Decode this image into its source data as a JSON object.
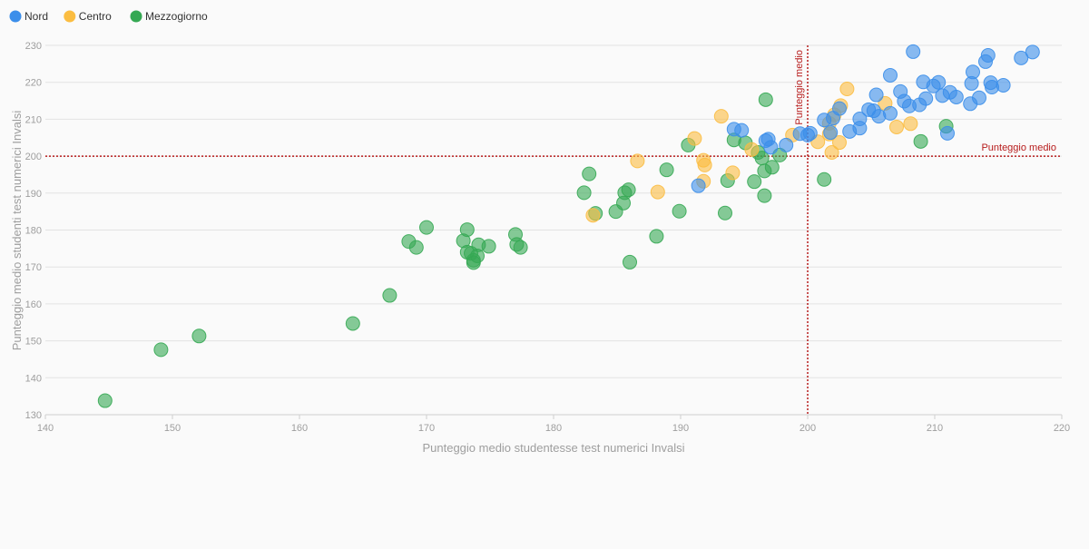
{
  "legend": [
    {
      "name": "Nord",
      "color": "#3b8eea"
    },
    {
      "name": "Centro",
      "color": "#fbbd41"
    },
    {
      "name": "Mezzogiorno",
      "color": "#35a853"
    }
  ],
  "chart_data": {
    "type": "scatter",
    "xlabel": "Punteggio medio studentesse test numerici Invalsi",
    "ylabel": "Punteggio medio studenti test numerici Invalsi",
    "xlim": [
      140,
      220
    ],
    "ylim": [
      130,
      230
    ],
    "x_ticks": [
      140,
      150,
      160,
      170,
      180,
      190,
      200,
      210,
      220
    ],
    "y_ticks": [
      130,
      140,
      150,
      160,
      170,
      180,
      190,
      200,
      210,
      220,
      230
    ],
    "grid": true,
    "legend_position": "top-left",
    "reference_lines": [
      {
        "axis": "x",
        "value": 200,
        "label": "Punteggio medio",
        "color": "#b71c1c"
      },
      {
        "axis": "y",
        "value": 200,
        "label": "Punteggio medio",
        "color": "#b71c1c"
      }
    ],
    "series": [
      {
        "name": "Mezzogiorno",
        "color": "#35a853",
        "points": [
          [
            144.7,
            133.8
          ],
          [
            149.1,
            147.6
          ],
          [
            152.1,
            151.3
          ],
          [
            164.2,
            154.7
          ],
          [
            167.1,
            162.3
          ],
          [
            168.6,
            176.9
          ],
          [
            169.2,
            175.3
          ],
          [
            170.0,
            180.7
          ],
          [
            172.9,
            177.1
          ],
          [
            173.2,
            180.1
          ],
          [
            173.2,
            174.0
          ],
          [
            173.5,
            173.7
          ],
          [
            173.7,
            171.2
          ],
          [
            173.7,
            171.8
          ],
          [
            174.0,
            173.0
          ],
          [
            174.1,
            176.0
          ],
          [
            174.9,
            175.6
          ],
          [
            177.0,
            178.8
          ],
          [
            177.1,
            176.1
          ],
          [
            177.4,
            175.3
          ],
          [
            182.4,
            190.1
          ],
          [
            182.8,
            195.2
          ],
          [
            183.3,
            184.5
          ],
          [
            184.9,
            185.0
          ],
          [
            185.5,
            187.3
          ],
          [
            185.6,
            190.1
          ],
          [
            185.9,
            190.9
          ],
          [
            186.0,
            171.3
          ],
          [
            188.1,
            178.3
          ],
          [
            188.9,
            196.3
          ],
          [
            189.9,
            185.1
          ],
          [
            190.6,
            203.0
          ],
          [
            193.5,
            184.6
          ],
          [
            193.7,
            193.4
          ],
          [
            194.2,
            204.4
          ],
          [
            195.1,
            203.6
          ],
          [
            195.8,
            193.1
          ],
          [
            196.1,
            201.0
          ],
          [
            196.4,
            199.5
          ],
          [
            196.6,
            196.0
          ],
          [
            196.6,
            189.3
          ],
          [
            196.7,
            215.3
          ],
          [
            197.2,
            197.0
          ],
          [
            197.8,
            200.3
          ],
          [
            201.3,
            193.7
          ],
          [
            208.9,
            204.0
          ],
          [
            210.9,
            208.1
          ]
        ]
      },
      {
        "name": "Centro",
        "color": "#fbbd41",
        "points": [
          [
            183.1,
            184.0
          ],
          [
            186.6,
            198.7
          ],
          [
            188.2,
            190.3
          ],
          [
            191.1,
            204.8
          ],
          [
            191.8,
            193.2
          ],
          [
            191.8,
            198.9
          ],
          [
            191.9,
            197.6
          ],
          [
            193.2,
            210.8
          ],
          [
            194.1,
            195.5
          ],
          [
            195.6,
            201.8
          ],
          [
            198.8,
            205.7
          ],
          [
            200.8,
            203.9
          ],
          [
            201.7,
            206.0
          ],
          [
            201.7,
            208.9
          ],
          [
            201.9,
            201.0
          ],
          [
            202.1,
            211.2
          ],
          [
            202.5,
            203.7
          ],
          [
            202.6,
            213.7
          ],
          [
            203.1,
            218.2
          ],
          [
            206.1,
            214.3
          ],
          [
            207.0,
            207.9
          ],
          [
            208.1,
            208.8
          ]
        ]
      },
      {
        "name": "Nord",
        "color": "#3b8eea",
        "points": [
          [
            191.4,
            192.0
          ],
          [
            194.2,
            207.3
          ],
          [
            194.8,
            207.0
          ],
          [
            196.7,
            204.2
          ],
          [
            196.9,
            204.6
          ],
          [
            197.1,
            202.4
          ],
          [
            198.3,
            203.0
          ],
          [
            199.4,
            206.1
          ],
          [
            200.0,
            205.7
          ],
          [
            200.2,
            206.2
          ],
          [
            201.3,
            209.8
          ],
          [
            201.8,
            206.4
          ],
          [
            202.0,
            210.3
          ],
          [
            202.5,
            212.9
          ],
          [
            203.3,
            206.7
          ],
          [
            204.1,
            207.6
          ],
          [
            204.1,
            210.1
          ],
          [
            204.8,
            212.6
          ],
          [
            205.2,
            212.3
          ],
          [
            205.4,
            216.6
          ],
          [
            205.6,
            210.8
          ],
          [
            206.5,
            221.9
          ],
          [
            206.5,
            211.6
          ],
          [
            207.3,
            217.5
          ],
          [
            207.6,
            214.9
          ],
          [
            208.0,
            213.6
          ],
          [
            208.3,
            228.3
          ],
          [
            208.8,
            213.9
          ],
          [
            209.1,
            220.1
          ],
          [
            209.3,
            215.6
          ],
          [
            209.9,
            219.0
          ],
          [
            210.3,
            220.0
          ],
          [
            210.6,
            216.4
          ],
          [
            211.0,
            206.2
          ],
          [
            211.2,
            217.3
          ],
          [
            211.7,
            216.0
          ],
          [
            212.8,
            214.2
          ],
          [
            212.9,
            219.7
          ],
          [
            213.0,
            222.8
          ],
          [
            213.5,
            215.8
          ],
          [
            214.0,
            225.6
          ],
          [
            214.2,
            227.3
          ],
          [
            214.4,
            219.9
          ],
          [
            214.5,
            218.7
          ],
          [
            215.4,
            219.2
          ],
          [
            216.8,
            226.6
          ],
          [
            217.7,
            228.2
          ]
        ]
      }
    ]
  }
}
